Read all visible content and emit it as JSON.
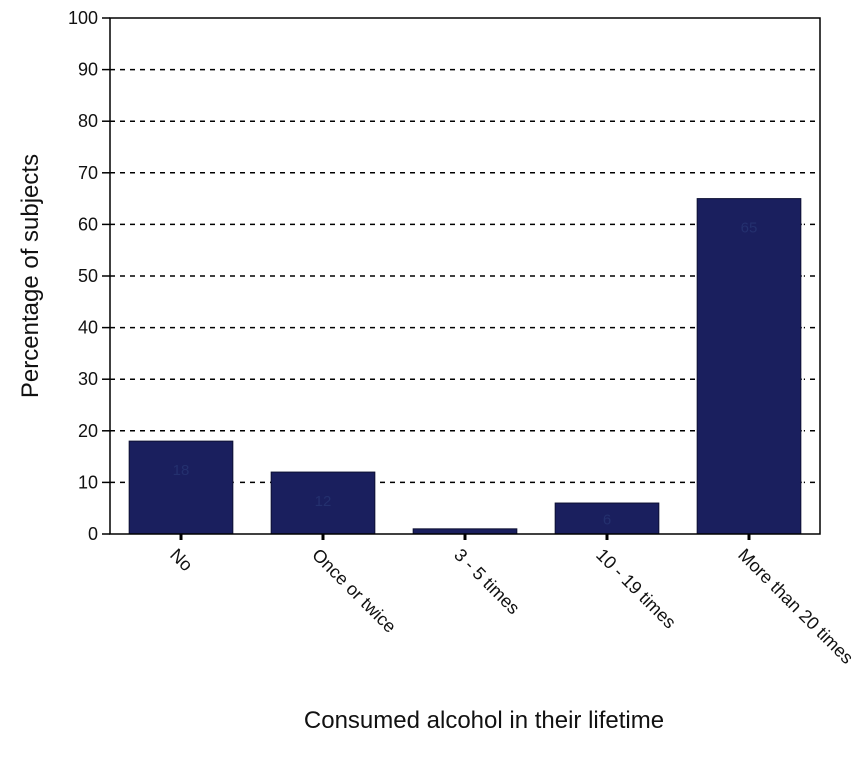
{
  "chart_data": {
    "type": "bar",
    "categories": [
      "No",
      "Once or twice",
      "3 - 5 times",
      "10 - 19 times",
      "More than 20 times"
    ],
    "values": [
      18,
      12,
      1,
      6,
      65
    ],
    "data_labels": [
      "18",
      "12",
      "1",
      "6",
      "65"
    ],
    "xlabel": "Consumed alcohol in their lifetime",
    "ylabel": "Percentage of subjects",
    "ylim": [
      0,
      100
    ],
    "yticks": [
      0,
      10,
      20,
      30,
      40,
      50,
      60,
      70,
      80,
      90,
      100
    ],
    "grid": "horizontal dashed",
    "legend": "none",
    "colors": {
      "bar": "#1a1f5e",
      "bar_edge": "#0d1033",
      "grid": "#000000",
      "axis": "#000000"
    }
  }
}
